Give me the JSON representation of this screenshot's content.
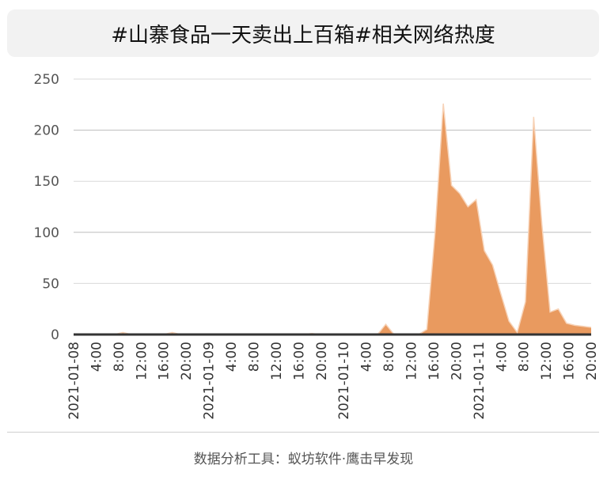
{
  "chart_data": {
    "type": "area",
    "title": "#山寨食品一天卖出上百箱#相关网络热度",
    "x_tick_labels": [
      "2021-01-08",
      "4:00",
      "8:00",
      "12:00",
      "16:00",
      "20:00",
      "2021-01-09",
      "4:00",
      "8:00",
      "12:00",
      "16:00",
      "20:00",
      "2021-01-10",
      "4:00",
      "8:00",
      "12:00",
      "16:00",
      "20:00",
      "2021-01-11",
      "4:00",
      "8:00",
      "12:00",
      "16:00",
      "20:00"
    ],
    "y_ticks": [
      0,
      50,
      100,
      150,
      200,
      250
    ],
    "ylim": [
      0,
      250
    ],
    "grid": true,
    "color": "#e99a5f",
    "series": [
      {
        "values": [
          0,
          0,
          0,
          0,
          0,
          0,
          2,
          0,
          0,
          0,
          0,
          0,
          2,
          0,
          0,
          0,
          0,
          0,
          0,
          0,
          0,
          0,
          0,
          0,
          0,
          0,
          0,
          0,
          0,
          1,
          0,
          0,
          0,
          0,
          0,
          0,
          0,
          0,
          10,
          0,
          0,
          0,
          0,
          5,
          100,
          226,
          146,
          138,
          125,
          132,
          82,
          68,
          40,
          13,
          2,
          32,
          213,
          108,
          22,
          25,
          11,
          9,
          8,
          7
        ]
      }
    ]
  },
  "footer": "数据分析工具：蚁坊软件·鹰击早发现"
}
